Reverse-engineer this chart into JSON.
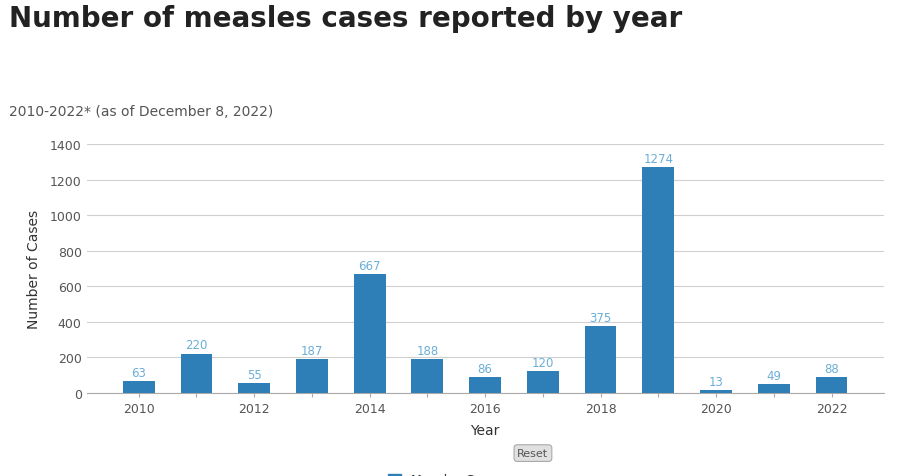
{
  "title": "Number of measles cases reported by year",
  "subtitle": "2010-2022* (as of December 8, 2022)",
  "xlabel": "Year",
  "ylabel": "Number of Cases",
  "years": [
    2010,
    2011,
    2012,
    2013,
    2014,
    2015,
    2016,
    2017,
    2018,
    2019,
    2020,
    2021,
    2022
  ],
  "values": [
    63,
    220,
    55,
    187,
    667,
    188,
    86,
    120,
    375,
    1274,
    13,
    49,
    88
  ],
  "bar_color": "#2E7EB8",
  "label_color": "#6BAED6",
  "background_color": "#ffffff",
  "ylim": [
    0,
    1400
  ],
  "yticks": [
    0,
    200,
    400,
    600,
    800,
    1000,
    1200,
    1400
  ],
  "legend_label": "Measles Cases",
  "title_fontsize": 20,
  "subtitle_fontsize": 10,
  "axis_label_fontsize": 10,
  "tick_fontsize": 9,
  "bar_label_fontsize": 8.5,
  "grid_color": "#d0d0d0",
  "spine_color": "#aaaaaa",
  "tick_color": "#555555",
  "title_color": "#222222",
  "subtitle_color": "#555555"
}
